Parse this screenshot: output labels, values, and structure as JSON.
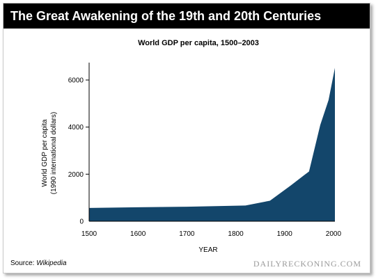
{
  "header": {
    "title": "The Great Awakening of the 19th and 20th Centuries"
  },
  "footer": {
    "source_label": "Source: ",
    "source_name": "Wikipedia",
    "brand": "DAILYRECKONING.COM"
  },
  "colors": {
    "fill": "#13466b",
    "header_bg": "#000000",
    "axis": "#000000"
  },
  "chart_data": {
    "type": "area",
    "title": "World GDP per capita, 1500–2003",
    "xlabel": "YEAR",
    "ylabel_lines": [
      "World GDP per capita",
      "(1990 international dollars)"
    ],
    "xlim": [
      1500,
      2003
    ],
    "ylim": [
      0,
      6600
    ],
    "x_ticks": [
      1500,
      1600,
      1700,
      1800,
      1900,
      2000
    ],
    "y_ticks": [
      0,
      2000,
      4000,
      6000
    ],
    "grid": false,
    "series": [
      {
        "x": [
          1500,
          1600,
          1700,
          1820,
          1870,
          1913,
          1940,
          1950,
          1973,
          1990,
          2003
        ],
        "values": [
          566,
          596,
          616,
          667,
          873,
          1526,
          1958,
          2113,
          4091,
          5150,
          6516
        ]
      }
    ]
  }
}
